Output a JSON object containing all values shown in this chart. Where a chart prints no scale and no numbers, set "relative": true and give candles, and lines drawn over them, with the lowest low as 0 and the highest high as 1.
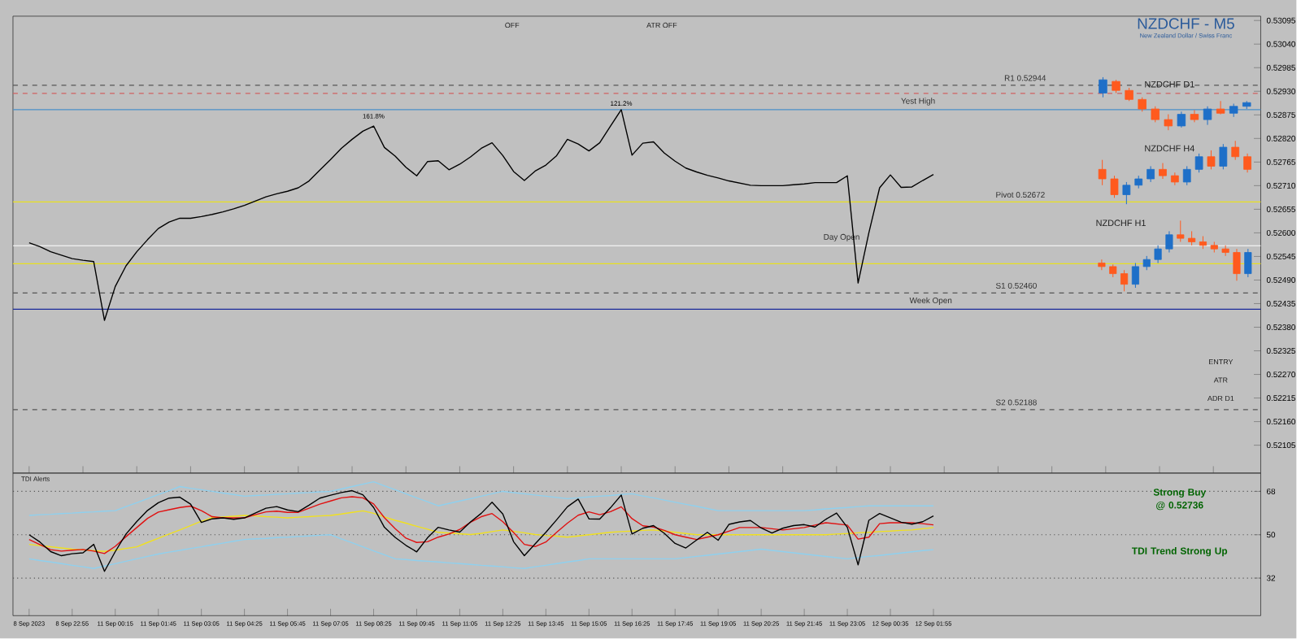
{
  "chart_data": [
    {
      "type": "line",
      "title": "NZDCHF - M5",
      "subtitle": "New Zealand Dollar / Swiss Franc",
      "tick_labels": "y",
      "marker": "none",
      "categories": [
        null,
        null,
        null,
        null,
        null,
        null,
        null,
        null,
        null,
        null,
        null,
        null,
        null,
        null,
        null,
        null,
        null,
        null,
        null,
        null,
        null,
        null,
        null,
        null,
        null,
        null,
        null,
        null,
        null,
        null,
        null,
        null,
        null,
        null,
        null,
        null,
        null,
        null,
        null,
        null,
        null,
        null,
        null,
        null,
        null,
        null,
        null,
        null,
        null,
        null,
        null,
        null,
        null,
        null,
        null,
        null,
        null,
        null,
        null,
        null,
        null,
        null,
        null,
        null,
        null,
        null,
        null,
        null,
        null,
        null,
        null,
        null,
        null,
        null,
        null,
        null,
        null,
        null,
        null,
        null,
        null,
        null,
        null,
        null,
        null
      ],
      "ylim": [
        0.5204,
        0.53105
      ],
      "yticks": [
        {
          "value": 0.53095,
          "label": "0.53095"
        },
        {
          "value": 0.5304,
          "label": "0.53040"
        },
        {
          "value": 0.52985,
          "label": "0.52985"
        },
        {
          "value": 0.5293,
          "label": "0.52930"
        },
        {
          "value": 0.52875,
          "label": "0.52875"
        },
        {
          "value": 0.5282,
          "label": "0.52820"
        },
        {
          "value": 0.52765,
          "label": "0.52765"
        },
        {
          "value": 0.5271,
          "label": "0.52710"
        },
        {
          "value": 0.52655,
          "label": "0.52655"
        },
        {
          "value": 0.526,
          "label": "0.52600"
        },
        {
          "value": 0.52545,
          "label": "0.52545"
        },
        {
          "value": 0.5249,
          "label": "0.52490"
        },
        {
          "value": 0.52435,
          "label": "0.52435"
        },
        {
          "value": 0.5238,
          "label": "0.52380"
        },
        {
          "value": 0.52325,
          "label": "0.52325"
        },
        {
          "value": 0.5227,
          "label": "0.52270"
        },
        {
          "value": 0.52215,
          "label": "0.52215"
        },
        {
          "value": 0.5216,
          "label": "0.52160"
        },
        {
          "value": 0.52105,
          "label": "0.52105"
        }
      ],
      "series": [
        {
          "color": "#000000",
          "values": [
            0.52577,
            0.52568,
            0.52556,
            0.52548,
            0.5254,
            0.52536,
            0.52533,
            0.52396,
            0.52475,
            0.52523,
            0.52556,
            0.52584,
            0.5261,
            0.52625,
            0.52634,
            0.52634,
            0.52638,
            0.52643,
            0.52649,
            0.52656,
            0.52664,
            0.52674,
            0.52684,
            0.52691,
            0.52697,
            0.52705,
            0.52721,
            0.52746,
            0.52771,
            0.52797,
            0.52818,
            0.52837,
            0.52849,
            0.52799,
            0.52779,
            0.52753,
            0.52733,
            0.52766,
            0.52768,
            0.52747,
            0.5276,
            0.52777,
            0.52797,
            0.5281,
            0.5278,
            0.52743,
            0.52722,
            0.52744,
            0.52758,
            0.5278,
            0.52818,
            0.52807,
            0.52791,
            0.5281,
            0.52849,
            0.52887,
            0.52781,
            0.52809,
            0.52812,
            0.52786,
            0.52767,
            0.52751,
            0.52742,
            0.52734,
            0.52728,
            0.52721,
            0.52716,
            0.52711,
            0.5271,
            0.5271,
            0.5271,
            0.52712,
            0.52714,
            0.52717,
            0.52717,
            0.52717,
            0.52733,
            0.52483,
            0.526,
            0.52705,
            0.52735,
            0.52706,
            0.52707,
            0.52722,
            0.52736
          ]
        }
      ],
      "ref_lines": [
        {
          "axis": "y",
          "value": 0.52944,
          "label": "R1 0.52944",
          "color": "#555555",
          "line_style": "dashed"
        },
        {
          "axis": "y",
          "value": 0.52925,
          "color": "#d06060",
          "line_style": "dashed"
        },
        {
          "axis": "y",
          "value": 0.52887,
          "label": "Yest High",
          "color": "#4a90c8",
          "line_style": "solid"
        },
        {
          "axis": "y",
          "value": 0.52672,
          "label": "Pivot 0.52672",
          "color": "#e8e020",
          "line_style": "solid"
        },
        {
          "axis": "y",
          "value": 0.5257,
          "label": "Day Open",
          "color": "#ffffff",
          "line_style": "solid"
        },
        {
          "axis": "y",
          "value": 0.52528,
          "color": "#e8e020",
          "line_style": "solid"
        },
        {
          "axis": "y",
          "value": 0.5246,
          "label": "S1 0.52460",
          "color": "#555555",
          "line_style": "dashed"
        },
        {
          "axis": "y",
          "value": 0.52422,
          "label": "Week Open",
          "color": "#1a2a9a",
          "line_style": "solid"
        },
        {
          "axis": "y",
          "value": 0.52188,
          "label": "S2 0.52188",
          "color": "#555555",
          "line_style": "dashed"
        }
      ],
      "annotations": [
        "161.8%",
        "121.2%",
        "OFF",
        "ATR OFF",
        "ENTRY",
        "ATR",
        "ADR D1"
      ]
    },
    {
      "type": "candlestick",
      "title": "NZDCHF D1",
      "relative": true,
      "categories": [
        null,
        null,
        null,
        null,
        null,
        null,
        null,
        null,
        null,
        null,
        null,
        null
      ],
      "ohlc": [
        [
          0.7,
          1.0,
          0.62,
          0.95
        ],
        [
          0.92,
          0.95,
          0.7,
          0.75
        ],
        [
          0.75,
          0.8,
          0.55,
          0.58
        ],
        [
          0.58,
          0.62,
          0.35,
          0.4
        ],
        [
          0.4,
          0.45,
          0.15,
          0.2
        ],
        [
          0.2,
          0.3,
          0.0,
          0.08
        ],
        [
          0.08,
          0.35,
          0.05,
          0.3
        ],
        [
          0.3,
          0.38,
          0.15,
          0.2
        ],
        [
          0.2,
          0.45,
          0.1,
          0.4
        ],
        [
          0.4,
          0.55,
          0.3,
          0.32
        ],
        [
          0.32,
          0.5,
          0.25,
          0.45
        ],
        [
          0.45,
          0.55,
          0.4,
          0.52
        ]
      ],
      "colors": [
        "#1e6fc8",
        "#ff5a1e",
        "#ff5a1e",
        "#ff5a1e",
        "#ff5a1e",
        "#ff5a1e",
        "#1e6fc8",
        "#ff5a1e",
        "#1e6fc8",
        "#ff5a1e",
        "#1e6fc8",
        "#1e6fc8"
      ]
    },
    {
      "type": "candlestick",
      "title": "NZDCHF H4",
      "relative": true,
      "categories": [
        null,
        null,
        null,
        null,
        null,
        null,
        null,
        null,
        null,
        null,
        null,
        null,
        null
      ],
      "ohlc": [
        [
          0.55,
          0.7,
          0.3,
          0.4
        ],
        [
          0.4,
          0.45,
          0.1,
          0.15
        ],
        [
          0.15,
          0.35,
          0.0,
          0.3
        ],
        [
          0.3,
          0.45,
          0.25,
          0.4
        ],
        [
          0.4,
          0.6,
          0.35,
          0.55
        ],
        [
          0.55,
          0.65,
          0.4,
          0.45
        ],
        [
          0.45,
          0.5,
          0.3,
          0.35
        ],
        [
          0.35,
          0.6,
          0.3,
          0.55
        ],
        [
          0.55,
          0.8,
          0.5,
          0.75
        ],
        [
          0.75,
          0.85,
          0.55,
          0.6
        ],
        [
          0.6,
          0.95,
          0.55,
          0.9
        ],
        [
          0.9,
          1.0,
          0.7,
          0.75
        ],
        [
          0.75,
          0.8,
          0.5,
          0.55
        ]
      ],
      "colors": [
        "#ff5a1e",
        "#ff5a1e",
        "#1e6fc8",
        "#1e6fc8",
        "#1e6fc8",
        "#ff5a1e",
        "#ff5a1e",
        "#1e6fc8",
        "#1e6fc8",
        "#ff5a1e",
        "#1e6fc8",
        "#ff5a1e",
        "#ff5a1e"
      ]
    },
    {
      "type": "candlestick",
      "title": "NZDCHF H1",
      "relative": true,
      "categories": [
        null,
        null,
        null,
        null,
        null,
        null,
        null,
        null,
        null,
        null,
        null,
        null,
        null,
        null
      ],
      "ohlc": [
        [
          0.4,
          0.45,
          0.3,
          0.35
        ],
        [
          0.35,
          0.38,
          0.2,
          0.25
        ],
        [
          0.25,
          0.3,
          0.0,
          0.1
        ],
        [
          0.1,
          0.4,
          0.05,
          0.35
        ],
        [
          0.35,
          0.5,
          0.3,
          0.45
        ],
        [
          0.45,
          0.65,
          0.4,
          0.6
        ],
        [
          0.6,
          0.85,
          0.55,
          0.8
        ],
        [
          0.8,
          1.0,
          0.7,
          0.75
        ],
        [
          0.75,
          0.85,
          0.65,
          0.7
        ],
        [
          0.7,
          0.78,
          0.6,
          0.65
        ],
        [
          0.65,
          0.7,
          0.55,
          0.6
        ],
        [
          0.6,
          0.65,
          0.5,
          0.55
        ],
        [
          0.55,
          0.6,
          0.15,
          0.25
        ],
        [
          0.25,
          0.6,
          0.2,
          0.55
        ]
      ],
      "colors": [
        "#ff5a1e",
        "#ff5a1e",
        "#ff5a1e",
        "#1e6fc8",
        "#1e6fc8",
        "#1e6fc8",
        "#1e6fc8",
        "#ff5a1e",
        "#ff5a1e",
        "#ff5a1e",
        "#ff5a1e",
        "#ff5a1e",
        "#ff5a1e",
        "#1e6fc8"
      ]
    },
    {
      "type": "line",
      "title": "TDI Alerts",
      "marker": "none",
      "categories": [
        "8 Sep 2023",
        null,
        null,
        null,
        "8 Sep 22:55",
        null,
        null,
        null,
        "11 Sep 00:15",
        null,
        null,
        null,
        "11 Sep 01:45",
        null,
        null,
        null,
        "11 Sep 03:05",
        null,
        null,
        null,
        "11 Sep 04:25",
        null,
        null,
        null,
        "11 Sep 05:45",
        null,
        null,
        null,
        "11 Sep 07:05",
        null,
        null,
        null,
        "11 Sep 08:25",
        null,
        null,
        null,
        "11 Sep 09:45",
        null,
        null,
        null,
        "11 Sep 11:05",
        null,
        null,
        null,
        "11 Sep 12:25",
        null,
        null,
        null,
        "11 Sep 13:45",
        null,
        null,
        null,
        "11 Sep 15:05",
        null,
        null,
        null,
        "11 Sep 16:25",
        null,
        null,
        null,
        "11 Sep 17:45",
        null,
        null,
        null,
        "11 Sep 19:05",
        null,
        null,
        null,
        "11 Sep 20:25",
        null,
        null,
        null,
        "11 Sep 21:45",
        null,
        null,
        null,
        "11 Sep 23:05",
        null,
        null,
        null,
        "12 Sep 00:35",
        null,
        null,
        null,
        "12 Sep 01:55"
      ],
      "ylim": [
        16.4,
        75.6
      ],
      "yticks": [
        32,
        50,
        68
      ],
      "ref_lines": [
        {
          "axis": "y",
          "value": 68,
          "color": "#555555",
          "line_style": "dotted"
        },
        {
          "axis": "y",
          "value": 50,
          "color": "#555555",
          "line_style": "dotted"
        },
        {
          "axis": "y",
          "value": 32,
          "color": "#555555",
          "line_style": "dotted"
        }
      ],
      "series": [
        {
          "color": "#8fd0ee",
          "values": [
            58,
            58.3,
            58.5,
            58.8,
            59,
            59.3,
            59.5,
            59.8,
            60,
            61.7,
            63.3,
            65,
            66.7,
            68.3,
            70,
            69.3,
            68.7,
            68,
            67.3,
            66.7,
            66,
            66.3,
            66.5,
            66.8,
            67,
            67.3,
            67.5,
            67.8,
            68,
            69,
            70,
            71,
            72,
            70.3,
            68.7,
            67,
            65.3,
            63.7,
            62,
            63,
            64,
            65,
            66,
            67,
            68,
            67.5,
            67,
            66.5,
            66,
            65.5,
            65,
            65.3,
            65.7,
            66,
            66.3,
            66.7,
            67,
            66.1,
            65.3,
            64.4,
            63.5,
            62.6,
            61.8,
            60.9,
            60,
            60,
            60,
            60,
            60,
            60,
            60,
            60,
            60,
            60.3,
            60.7,
            61,
            61.3,
            61.7,
            62,
            62,
            62,
            62,
            62,
            62,
            62
          ]
        },
        {
          "color": "#8fd0ee",
          "values": [
            40,
            39.3,
            38.7,
            38,
            37.3,
            36.7,
            36,
            37,
            38,
            39,
            40,
            41,
            42,
            42.8,
            43.5,
            44.3,
            45,
            45.8,
            46.5,
            47.3,
            48,
            48.3,
            48.5,
            48.8,
            49,
            49.3,
            49.5,
            49.8,
            50,
            48.3,
            46.7,
            45,
            43.3,
            41.7,
            40,
            39.7,
            39.3,
            39,
            38.7,
            38.3,
            38,
            37.7,
            37.3,
            37,
            36.7,
            36.3,
            36,
            36.7,
            37.3,
            38,
            38.7,
            39.3,
            40,
            40,
            40,
            40,
            40,
            40,
            40,
            40,
            40,
            40.5,
            41,
            41.5,
            42,
            42.5,
            43,
            43.5,
            44,
            43.5,
            43,
            42.5,
            42,
            41.5,
            41,
            40.5,
            40,
            40.5,
            41,
            41.4,
            41.9,
            42.4,
            42.9,
            43.4,
            43.8
          ]
        },
        {
          "color": "#f0e020",
          "values": [
            46,
            45.5,
            45,
            44.5,
            44,
            43.7,
            43.4,
            43.1,
            43.6,
            44.3,
            45,
            46.8,
            48.5,
            50.3,
            52,
            53.8,
            55.6,
            57.1,
            57.4,
            57.7,
            58,
            57.8,
            57.5,
            57.3,
            57,
            57.3,
            57.5,
            57.8,
            58,
            58.6,
            59.3,
            59.9,
            58.9,
            57.4,
            56,
            54.8,
            53.5,
            52.3,
            51,
            50.7,
            50.4,
            50.1,
            50.6,
            51.3,
            52,
            51.4,
            50.8,
            50.1,
            49.7,
            49.4,
            49,
            49.5,
            50,
            50.5,
            51,
            51.3,
            51.5,
            51.8,
            52,
            51.5,
            51,
            50.5,
            50,
            50,
            50,
            50,
            50,
            50,
            50,
            50,
            50,
            50,
            50,
            50,
            50,
            50.3,
            50.5,
            50.8,
            51,
            51.3,
            51.5,
            51.8,
            52,
            52.5,
            53
          ]
        },
        {
          "color": "#e01010",
          "values": [
            48,
            45.9,
            43.8,
            43.2,
            43.6,
            43.9,
            43.2,
            42.2,
            45.2,
            49.2,
            53,
            56.8,
            59.4,
            60.4,
            61.3,
            61.9,
            60,
            57.5,
            57,
            57,
            57,
            58.3,
            59.5,
            59.8,
            59.3,
            59.3,
            61,
            62.7,
            64,
            65.3,
            65.8,
            65.3,
            62.8,
            57.1,
            52.5,
            48.6,
            46.8,
            47.1,
            49,
            50.3,
            52.2,
            55.2,
            57.5,
            58.8,
            55.4,
            50.9,
            46,
            45.1,
            47,
            51,
            54.8,
            58.1,
            59.5,
            58.3,
            59.6,
            61.6,
            56.7,
            53.7,
            53.2,
            51.8,
            50,
            49,
            48,
            49,
            50,
            51.5,
            53,
            53,
            53,
            52.5,
            52,
            52.5,
            53,
            54,
            55,
            54.5,
            54,
            48.2,
            49,
            54.6,
            55,
            55,
            55,
            54.6,
            54.1
          ]
        },
        {
          "color": "#000000",
          "values": [
            50,
            47,
            43,
            41.3,
            42.1,
            42.5,
            46,
            34.8,
            43,
            50.3,
            55.5,
            60.1,
            63.3,
            65.2,
            65.6,
            62.7,
            55.1,
            56.6,
            57,
            56.4,
            57,
            59,
            61,
            61.7,
            60.3,
            59.6,
            62.3,
            65.2,
            66.4,
            67.5,
            68.3,
            66.6,
            61.3,
            53.1,
            48.9,
            45.6,
            42.9,
            48.7,
            53.1,
            52,
            51.1,
            55.3,
            58.9,
            63.5,
            58.6,
            47.1,
            41.3,
            46.2,
            51,
            56.2,
            61.6,
            64.8,
            56.6,
            56.5,
            61.2,
            66.5,
            50.3,
            52.7,
            53.8,
            50.6,
            46.4,
            44.5,
            47.8,
            51,
            47.7,
            54.3,
            55.3,
            55.9,
            52.8,
            50.7,
            52.7,
            53.8,
            54.2,
            53.2,
            56.4,
            59,
            53.1,
            37.5,
            56,
            58.8,
            57,
            55.2,
            54.4,
            55.4,
            57.8
          ]
        }
      ],
      "annotations": [
        "Strong Buy @ 0.52736",
        "TDI Trend Strong Up"
      ]
    }
  ]
}
